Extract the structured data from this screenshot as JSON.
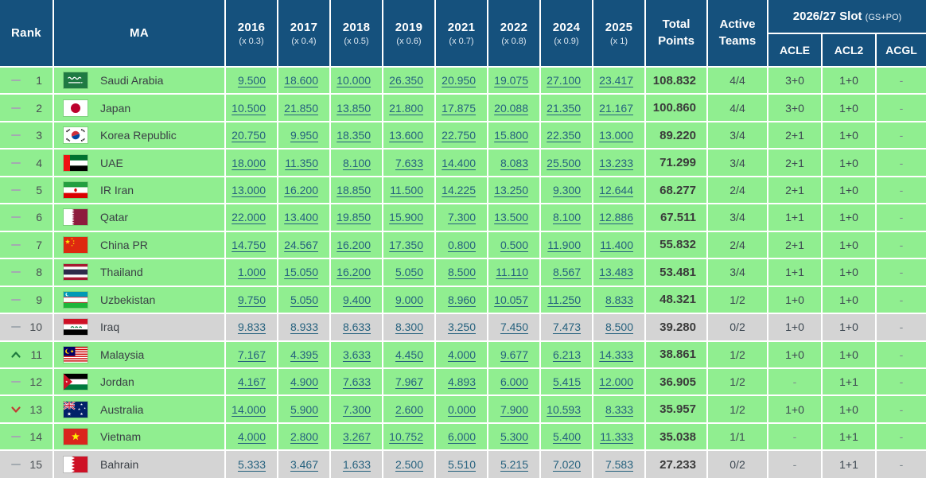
{
  "header": {
    "rank": "Rank",
    "ma": "MA",
    "years": [
      {
        "label": "2016",
        "multiplier": "(x 0.3)"
      },
      {
        "label": "2017",
        "multiplier": "(x 0.4)"
      },
      {
        "label": "2018",
        "multiplier": "(x 0.5)"
      },
      {
        "label": "2019",
        "multiplier": "(x 0.6)"
      },
      {
        "label": "2021",
        "multiplier": "(x 0.7)"
      },
      {
        "label": "2022",
        "multiplier": "(x 0.8)"
      },
      {
        "label": "2024",
        "multiplier": "(x 0.9)"
      },
      {
        "label": "2025",
        "multiplier": "(x 1)"
      }
    ],
    "total_line1": "Total",
    "total_line2": "Points",
    "active_line1": "Active",
    "active_line2": "Teams",
    "slot_title": "2026/27 Slot",
    "slot_subtitle": "(GS+PO)",
    "slot_columns": [
      "ACLE",
      "ACL2",
      "ACGL"
    ]
  },
  "rows": [
    {
      "movement": "same",
      "rank": "1",
      "flag": "saudi-arabia",
      "country": "Saudi Arabia",
      "values": [
        "9.500",
        "18.600",
        "10.000",
        "26.350",
        "20.950",
        "19.075",
        "27.100",
        "23.417"
      ],
      "total": "108.832",
      "active": "4/4",
      "acle": "3+0",
      "acl2": "1+0",
      "acgl": "-",
      "shade": "green"
    },
    {
      "movement": "same",
      "rank": "2",
      "flag": "japan",
      "country": "Japan",
      "values": [
        "10.500",
        "21.850",
        "13.850",
        "21.800",
        "17.875",
        "20.088",
        "21.350",
        "21.167"
      ],
      "total": "100.860",
      "active": "4/4",
      "acle": "3+0",
      "acl2": "1+0",
      "acgl": "-",
      "shade": "green"
    },
    {
      "movement": "same",
      "rank": "3",
      "flag": "korea-republic",
      "country": "Korea Republic",
      "values": [
        "20.750",
        "9.950",
        "18.350",
        "13.600",
        "22.750",
        "15.800",
        "22.350",
        "13.000"
      ],
      "total": "89.220",
      "active": "3/4",
      "acle": "2+1",
      "acl2": "1+0",
      "acgl": "-",
      "shade": "green"
    },
    {
      "movement": "same",
      "rank": "4",
      "flag": "uae",
      "country": "UAE",
      "values": [
        "18.000",
        "11.350",
        "8.100",
        "7.633",
        "14.400",
        "8.083",
        "25.500",
        "13.233"
      ],
      "total": "71.299",
      "active": "3/4",
      "acle": "2+1",
      "acl2": "1+0",
      "acgl": "-",
      "shade": "green"
    },
    {
      "movement": "same",
      "rank": "5",
      "flag": "ir-iran",
      "country": "IR Iran",
      "values": [
        "13.000",
        "16.200",
        "18.850",
        "11.500",
        "14.225",
        "13.250",
        "9.300",
        "12.644"
      ],
      "total": "68.277",
      "active": "2/4",
      "acle": "2+1",
      "acl2": "1+0",
      "acgl": "-",
      "shade": "green"
    },
    {
      "movement": "same",
      "rank": "6",
      "flag": "qatar",
      "country": "Qatar",
      "values": [
        "22.000",
        "13.400",
        "19.850",
        "15.900",
        "7.300",
        "13.500",
        "8.100",
        "12.886"
      ],
      "total": "67.511",
      "active": "3/4",
      "acle": "1+1",
      "acl2": "1+0",
      "acgl": "-",
      "shade": "green"
    },
    {
      "movement": "same",
      "rank": "7",
      "flag": "china-pr",
      "country": "China PR",
      "values": [
        "14.750",
        "24.567",
        "16.200",
        "17.350",
        "0.800",
        "0.500",
        "11.900",
        "11.400"
      ],
      "total": "55.832",
      "active": "2/4",
      "acle": "2+1",
      "acl2": "1+0",
      "acgl": "-",
      "shade": "green"
    },
    {
      "movement": "same",
      "rank": "8",
      "flag": "thailand",
      "country": "Thailand",
      "values": [
        "1.000",
        "15.050",
        "16.200",
        "5.050",
        "8.500",
        "11.110",
        "8.567",
        "13.483"
      ],
      "total": "53.481",
      "active": "3/4",
      "acle": "1+1",
      "acl2": "1+0",
      "acgl": "-",
      "shade": "green"
    },
    {
      "movement": "same",
      "rank": "9",
      "flag": "uzbekistan",
      "country": "Uzbekistan",
      "values": [
        "9.750",
        "5.050",
        "9.400",
        "9.000",
        "8.960",
        "10.057",
        "11.250",
        "8.833"
      ],
      "total": "48.321",
      "active": "1/2",
      "acle": "1+0",
      "acl2": "1+0",
      "acgl": "-",
      "shade": "green"
    },
    {
      "movement": "same",
      "rank": "10",
      "flag": "iraq",
      "country": "Iraq",
      "values": [
        "9.833",
        "8.933",
        "8.633",
        "8.300",
        "3.250",
        "7.450",
        "7.473",
        "8.500"
      ],
      "total": "39.280",
      "active": "0/2",
      "acle": "1+0",
      "acl2": "1+0",
      "acgl": "-",
      "shade": "gray"
    },
    {
      "movement": "up",
      "rank": "11",
      "flag": "malaysia",
      "country": "Malaysia",
      "values": [
        "7.167",
        "4.395",
        "3.633",
        "4.450",
        "4.000",
        "9.677",
        "6.213",
        "14.333"
      ],
      "total": "38.861",
      "active": "1/2",
      "acle": "1+0",
      "acl2": "1+0",
      "acgl": "-",
      "shade": "green"
    },
    {
      "movement": "same",
      "rank": "12",
      "flag": "jordan",
      "country": "Jordan",
      "values": [
        "4.167",
        "4.900",
        "7.633",
        "7.967",
        "4.893",
        "6.000",
        "5.415",
        "12.000"
      ],
      "total": "36.905",
      "active": "1/2",
      "acle": "-",
      "acl2": "1+1",
      "acgl": "-",
      "shade": "green"
    },
    {
      "movement": "down",
      "rank": "13",
      "flag": "australia",
      "country": "Australia",
      "values": [
        "14.000",
        "5.900",
        "7.300",
        "2.600",
        "0.000",
        "7.900",
        "10.593",
        "8.333"
      ],
      "total": "35.957",
      "active": "1/2",
      "acle": "1+0",
      "acl2": "1+0",
      "acgl": "-",
      "shade": "green"
    },
    {
      "movement": "same",
      "rank": "14",
      "flag": "vietnam",
      "country": "Vietnam",
      "values": [
        "4.000",
        "2.800",
        "3.267",
        "10.752",
        "6.000",
        "5.300",
        "5.400",
        "11.333"
      ],
      "total": "35.038",
      "active": "1/1",
      "acle": "-",
      "acl2": "1+1",
      "acgl": "-",
      "shade": "green"
    },
    {
      "movement": "same",
      "rank": "15",
      "flag": "bahrain",
      "country": "Bahrain",
      "values": [
        "5.333",
        "3.467",
        "1.633",
        "2.500",
        "5.510",
        "5.215",
        "7.020",
        "7.583"
      ],
      "total": "27.233",
      "active": "0/2",
      "acle": "-",
      "acl2": "1+1",
      "acgl": "-",
      "shade": "gray"
    }
  ],
  "colors": {
    "header_bg": "#15517d",
    "row_green": "#90ee90",
    "row_gray": "#d4d4d4",
    "link": "#25617e",
    "up_arrow": "#1e7a3e",
    "down_arrow": "#c23b33",
    "same_dash": "#a3aab0"
  }
}
